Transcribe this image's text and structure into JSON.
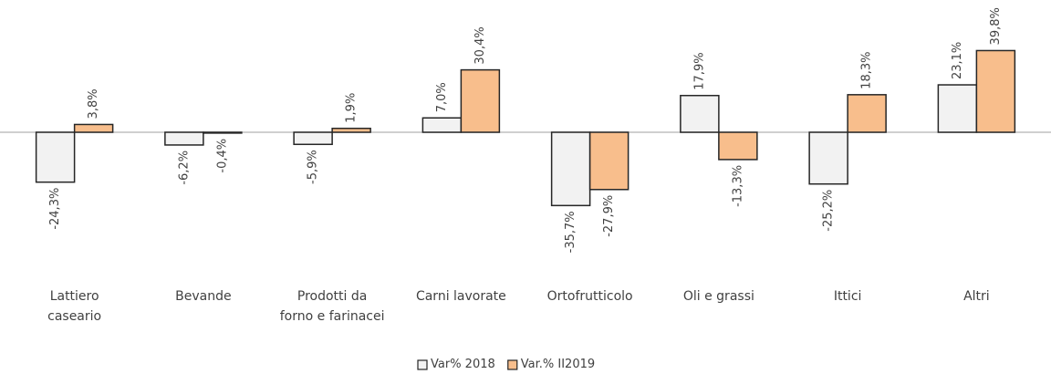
{
  "chart_data": {
    "type": "bar",
    "categories": [
      "Lattiero\ncaseario",
      "Bevande",
      "Prodotti da\nforno e farinacei",
      "Carni lavorate",
      "Ortofrutticolo",
      "Oli e grassi",
      "Ittici",
      "Altri"
    ],
    "series": [
      {
        "name": "Var% 2018",
        "color": "#f2f2f2",
        "values": [
          -24.3,
          -6.2,
          -5.9,
          7.0,
          -35.7,
          17.9,
          -25.2,
          23.1
        ],
        "value_labels": [
          "-24,3%",
          "-6,2%",
          "-5,9%",
          "7,0%",
          "-35,7%",
          "17,9%",
          "-25,2%",
          "23,1%"
        ]
      },
      {
        "name": "Var.% II2019",
        "color": "#f8be8c",
        "values": [
          3.8,
          -0.4,
          1.9,
          30.4,
          -27.9,
          -13.3,
          18.3,
          39.8
        ],
        "value_labels": [
          "3,8%",
          "-0,4%",
          "1,9%",
          "30,4%",
          "-27,9%",
          "-13,3%",
          "18,3%",
          "39,8%"
        ]
      }
    ],
    "ylim": [
      -40,
      40
    ],
    "legend": "bottom"
  }
}
